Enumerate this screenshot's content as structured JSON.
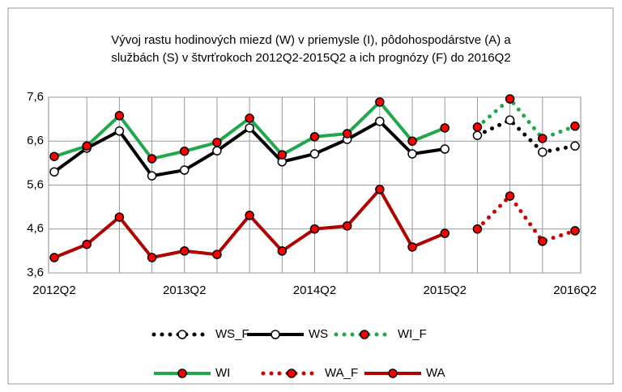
{
  "chart_data": {
    "type": "line",
    "title": [
      "Vývoj rastu hodinových miezd (W) v priemysle (I), pôdohospodárstve (A) a",
      "službách (S) v štvrťrokoch 2012Q2-2015Q2 a ich prognózy (F) do 2016Q2"
    ],
    "categories": [
      "2012Q2",
      null,
      null,
      null,
      "2013Q2",
      null,
      null,
      null,
      "2014Q2",
      null,
      null,
      null,
      "2015Q2",
      null,
      null,
      null,
      "2016Q2"
    ],
    "ylim": [
      3.6,
      7.6
    ],
    "yticks": [
      {
        "value": 3.6,
        "label": "3,6"
      },
      {
        "value": 4.6,
        "label": "4,6"
      },
      {
        "value": 5.6,
        "label": "5,6"
      },
      {
        "value": 6.6,
        "label": "6,6"
      },
      {
        "value": 7.6,
        "label": "7,6"
      }
    ],
    "grid": true,
    "legend": "bottom",
    "series": [
      {
        "name": "WS_F",
        "color": "#000000",
        "line_style": "dotted",
        "marker_fill": "#ffffff",
        "values": [
          null,
          null,
          null,
          null,
          null,
          null,
          null,
          null,
          null,
          null,
          null,
          null,
          null,
          6.73,
          7.08,
          6.35,
          6.49
        ]
      },
      {
        "name": "WS",
        "color": "#000000",
        "line_style": "solid",
        "marker_fill": "#ffffff",
        "values": [
          5.9,
          6.44,
          6.83,
          5.81,
          5.94,
          6.38,
          6.9,
          6.13,
          6.31,
          6.64,
          7.05,
          6.31,
          6.42,
          null,
          null,
          null,
          null
        ]
      },
      {
        "name": "WI_F",
        "color": "#1fa84a",
        "line_style": "dotted",
        "marker_fill": "#ff0000",
        "values": [
          null,
          null,
          null,
          null,
          null,
          null,
          null,
          null,
          null,
          null,
          null,
          null,
          null,
          6.92,
          7.56,
          6.66,
          6.94
        ]
      },
      {
        "name": "WI",
        "color": "#1fa84a",
        "line_style": "solid",
        "marker_fill": "#ff0000",
        "values": [
          6.25,
          6.49,
          7.18,
          6.2,
          6.37,
          6.57,
          7.12,
          6.29,
          6.7,
          6.77,
          7.49,
          6.6,
          6.9,
          null,
          null,
          null,
          null
        ]
      },
      {
        "name": "WA_F",
        "color": "#d00000",
        "line_style": "dotted",
        "marker_fill": "#ff0000",
        "values": [
          null,
          null,
          null,
          null,
          null,
          null,
          null,
          null,
          null,
          null,
          null,
          null,
          null,
          4.6,
          5.35,
          4.32,
          4.56
        ]
      },
      {
        "name": "WA",
        "color": "#b00000",
        "line_style": "solid",
        "marker_fill": "#ff0000",
        "values": [
          3.95,
          4.25,
          4.87,
          3.95,
          4.1,
          4.02,
          4.91,
          4.1,
          4.6,
          4.67,
          5.5,
          4.19,
          4.5,
          null,
          null,
          null,
          null
        ]
      }
    ]
  }
}
